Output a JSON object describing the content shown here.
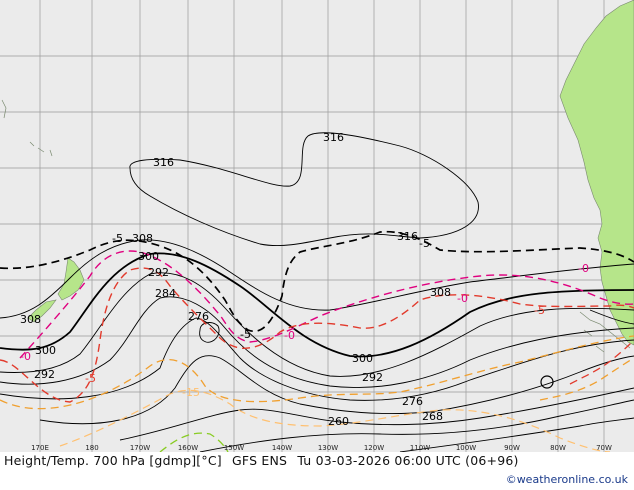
{
  "map": {
    "background_color": "#ebebeb",
    "land_color": "#b6e58a",
    "grid_color": "#9a9a9a",
    "height_contour_color": "#000000",
    "temp_colors": {
      "zero": "#e0007f",
      "minus5": "#e23a2c",
      "minus10": "#f0a030",
      "minus15": "#ffc070",
      "minus20": "#88cc22"
    },
    "height_labels": [
      "316",
      "316",
      "316",
      "308",
      "308",
      "308",
      "300",
      "300",
      "300",
      "292",
      "292",
      "292",
      "284",
      "276",
      "276",
      "268",
      "260"
    ],
    "temp_labels": [
      "-5",
      "-5",
      "-5",
      "-5",
      "-5",
      "-0",
      "-0",
      "-0",
      "-0",
      "-15"
    ],
    "longitude_labels": [
      "170E",
      "180",
      "170W",
      "160W",
      "150W",
      "140W",
      "130W",
      "120W",
      "110W",
      "100W",
      "90W",
      "80W",
      "70W"
    ]
  },
  "title": {
    "product": "Height/Temp. 700 hPa [gdmp][°C]",
    "model": "GFS ENS",
    "valid": "Tu 03-03-2026 06:00 UTC (06+96)"
  },
  "credit": "©weatheronline.co.uk"
}
